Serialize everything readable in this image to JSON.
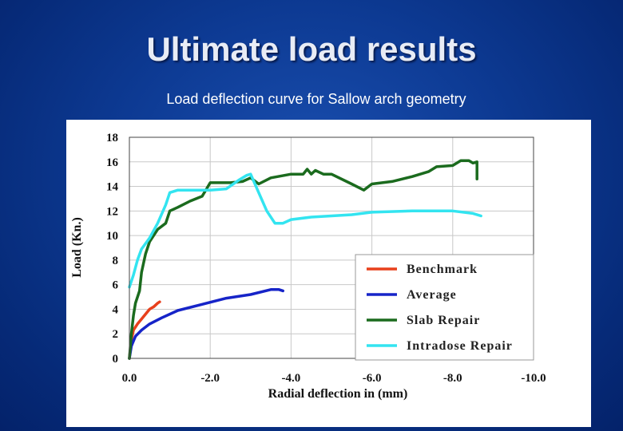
{
  "slide": {
    "title": "Ultimate load results",
    "subtitle": "Load  deflection curve for Sallow arch geometry"
  },
  "chart_data": {
    "type": "line",
    "title": "",
    "xlabel": "Radial deflection in (mm)",
    "ylabel": "Load (Kn.)",
    "xlim": [
      0,
      -10
    ],
    "ylim": [
      0,
      18
    ],
    "xticks": [
      "0.0",
      "-2.0",
      "-4.0",
      "-6.0",
      "-8.0",
      "-10.0"
    ],
    "yticks": [
      "0",
      "2",
      "4",
      "6",
      "8",
      "10",
      "12",
      "14",
      "16",
      "18"
    ],
    "grid": true,
    "legend_position": "bottom-right",
    "series": [
      {
        "name": "Benchmark",
        "color": "#e8401c",
        "points": [
          [
            0.0,
            0.0
          ],
          [
            -0.05,
            1.5
          ],
          [
            -0.1,
            2.3
          ],
          [
            -0.2,
            2.8
          ],
          [
            -0.3,
            3.2
          ],
          [
            -0.4,
            3.6
          ],
          [
            -0.5,
            4.0
          ],
          [
            -0.6,
            4.2
          ],
          [
            -0.7,
            4.5
          ],
          [
            -0.75,
            4.6
          ]
        ]
      },
      {
        "name": "Average",
        "color": "#1624c8",
        "points": [
          [
            0.0,
            0.0
          ],
          [
            -0.05,
            1.0
          ],
          [
            -0.15,
            1.8
          ],
          [
            -0.3,
            2.3
          ],
          [
            -0.5,
            2.8
          ],
          [
            -0.8,
            3.3
          ],
          [
            -1.2,
            3.9
          ],
          [
            -1.8,
            4.4
          ],
          [
            -2.4,
            4.9
          ],
          [
            -3.0,
            5.2
          ],
          [
            -3.5,
            5.6
          ],
          [
            -3.7,
            5.6
          ],
          [
            -3.8,
            5.5
          ]
        ]
      },
      {
        "name": "Slab Repair",
        "color": "#1b6b1e",
        "points": [
          [
            0.0,
            0.0
          ],
          [
            -0.05,
            2.0
          ],
          [
            -0.1,
            3.5
          ],
          [
            -0.15,
            4.5
          ],
          [
            -0.25,
            5.5
          ],
          [
            -0.3,
            7.0
          ],
          [
            -0.4,
            8.5
          ],
          [
            -0.5,
            9.5
          ],
          [
            -0.7,
            10.5
          ],
          [
            -0.9,
            11.0
          ],
          [
            -1.0,
            12.0
          ],
          [
            -1.2,
            12.3
          ],
          [
            -1.5,
            12.8
          ],
          [
            -1.8,
            13.2
          ],
          [
            -2.0,
            14.3
          ],
          [
            -2.5,
            14.3
          ],
          [
            -2.8,
            14.4
          ],
          [
            -3.0,
            14.7
          ],
          [
            -3.2,
            14.2
          ],
          [
            -3.5,
            14.7
          ],
          [
            -4.0,
            15.0
          ],
          [
            -4.3,
            15.0
          ],
          [
            -4.4,
            15.4
          ],
          [
            -4.5,
            15.0
          ],
          [
            -4.6,
            15.3
          ],
          [
            -4.8,
            15.0
          ],
          [
            -5.0,
            15.0
          ],
          [
            -5.5,
            14.2
          ],
          [
            -5.8,
            13.7
          ],
          [
            -6.0,
            14.2
          ],
          [
            -6.5,
            14.4
          ],
          [
            -7.0,
            14.8
          ],
          [
            -7.4,
            15.2
          ],
          [
            -7.6,
            15.6
          ],
          [
            -8.0,
            15.7
          ],
          [
            -8.2,
            16.1
          ],
          [
            -8.4,
            16.1
          ],
          [
            -8.5,
            15.9
          ],
          [
            -8.6,
            16.0
          ],
          [
            -8.6,
            14.6
          ]
        ]
      },
      {
        "name": "Intradose Repair",
        "color": "#33e4f0",
        "points": [
          [
            0.0,
            5.8
          ],
          [
            -0.1,
            6.8
          ],
          [
            -0.2,
            8.0
          ],
          [
            -0.3,
            8.9
          ],
          [
            -0.5,
            9.8
          ],
          [
            -0.7,
            11.0
          ],
          [
            -0.9,
            12.5
          ],
          [
            -1.0,
            13.5
          ],
          [
            -1.2,
            13.7
          ],
          [
            -1.6,
            13.7
          ],
          [
            -2.0,
            13.7
          ],
          [
            -2.4,
            13.8
          ],
          [
            -2.7,
            14.5
          ],
          [
            -2.9,
            14.9
          ],
          [
            -3.0,
            15.0
          ],
          [
            -3.2,
            13.5
          ],
          [
            -3.4,
            12.0
          ],
          [
            -3.6,
            11.0
          ],
          [
            -3.8,
            11.0
          ],
          [
            -4.0,
            11.3
          ],
          [
            -4.5,
            11.5
          ],
          [
            -5.0,
            11.6
          ],
          [
            -5.5,
            11.7
          ],
          [
            -6.0,
            11.9
          ],
          [
            -7.0,
            12.0
          ],
          [
            -8.0,
            12.0
          ],
          [
            -8.5,
            11.8
          ],
          [
            -8.7,
            11.6
          ]
        ]
      }
    ]
  }
}
